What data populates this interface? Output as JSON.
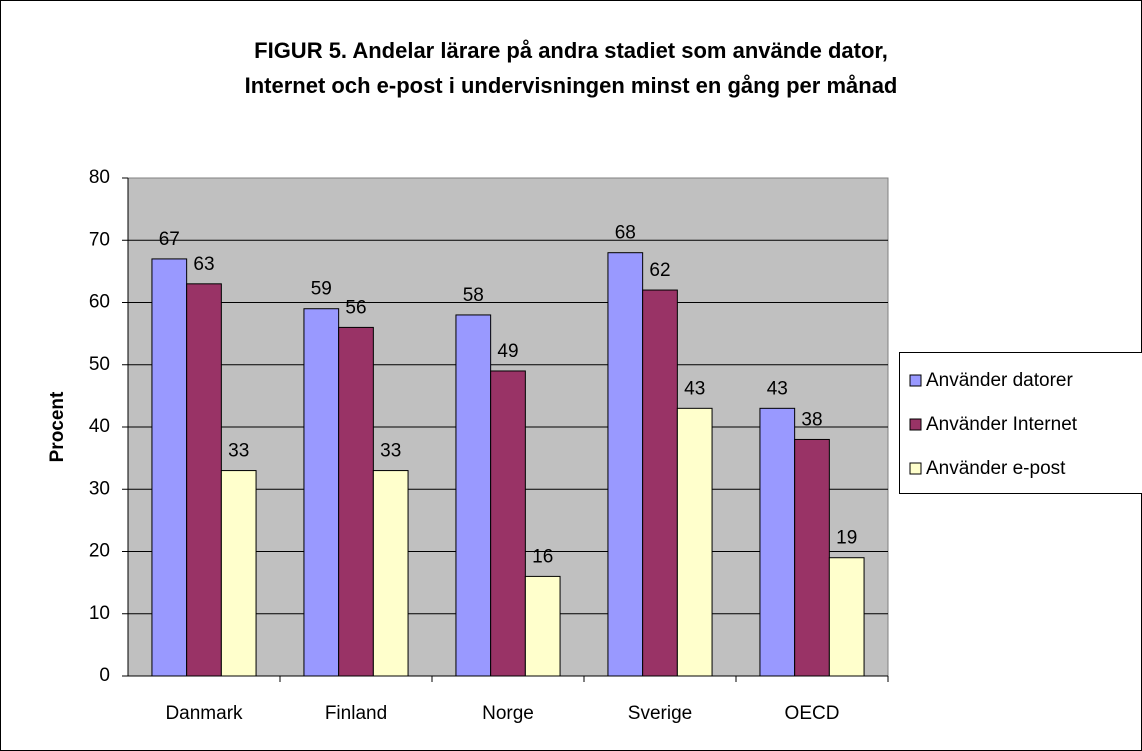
{
  "chart_data": {
    "type": "bar",
    "title": [
      "FIGUR 5. Andelar lärare på andra stadiet som använde dator,",
      "Internet och e-post i undervisningen minst en gång per månad"
    ],
    "y_label": "Procent",
    "categories": [
      "Danmark",
      "Finland",
      "Norge",
      "Sverige",
      "OECD"
    ],
    "series": [
      {
        "name": "Använder datorer",
        "color": "#9999FF",
        "values": [
          67,
          59,
          58,
          68,
          43
        ]
      },
      {
        "name": "Använder Internet",
        "color": "#993366",
        "values": [
          63,
          56,
          49,
          62,
          38
        ]
      },
      {
        "name": "Använder e-post",
        "color": "#FFFFCC",
        "values": [
          33,
          33,
          16,
          43,
          19
        ]
      }
    ],
    "ylim": [
      0,
      80
    ],
    "yticks": [
      0,
      10,
      20,
      30,
      40,
      50,
      60,
      70,
      80
    ],
    "grid": true,
    "legend": "right"
  }
}
